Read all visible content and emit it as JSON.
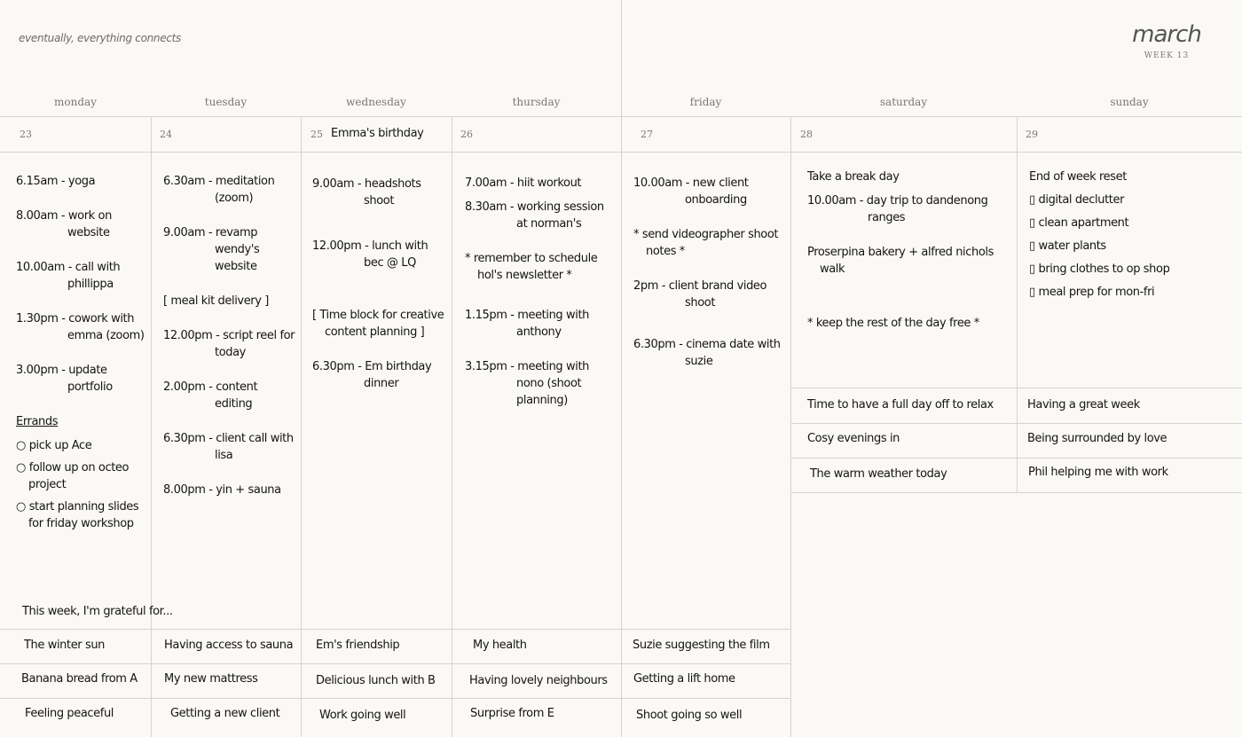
{
  "header": {
    "tagline": "eventually, everything connects",
    "month": "march",
    "week": "WEEK 13"
  },
  "days": [
    {
      "name": "monday",
      "date": "23"
    },
    {
      "name": "tuesday",
      "date": "24"
    },
    {
      "name": "wednesday",
      "date": "25",
      "note": "Emma's birthday"
    },
    {
      "name": "thursday",
      "date": "26"
    },
    {
      "name": "friday",
      "date": "27"
    },
    {
      "name": "saturday",
      "date": "28"
    },
    {
      "name": "sunday",
      "date": "29"
    }
  ],
  "monday": {
    "items": [
      "6.15am - yoga",
      "8.00am - work on website",
      "10.00am - call with phillippa",
      "1.30pm - cowork with emma (zoom)",
      "3.00pm - update portfolio"
    ],
    "errands_title": "Errands",
    "errands": [
      "pick up Ace",
      "follow up on octeo project",
      "start planning slides for friday workshop"
    ]
  },
  "tuesday": {
    "items": [
      "6.30am - meditation (zoom)",
      "9.00am - revamp wendy's website",
      "[ meal kit delivery ]",
      "12.00pm - script reel for today",
      "2.00pm - content editing",
      "6.30pm - client call with lisa",
      "8.00pm - yin + sauna"
    ]
  },
  "wednesday": {
    "items": [
      "9.00am - headshots shoot",
      "12.00pm - lunch with bec @ LQ",
      "[ Time block for creative content planning ]",
      "6.30pm - Em birthday dinner"
    ]
  },
  "thursday": {
    "items": [
      "7.00am - hiit workout",
      "8.30am - working session at norman's",
      "* remember to schedule hol's newsletter *",
      "1.15pm - meeting with anthony",
      "3.15pm - meeting with nono (shoot planning)"
    ]
  },
  "friday": {
    "items": [
      "10.00am - new client onboarding",
      "* send videographer shoot notes *",
      "2pm - client brand video shoot",
      "6.30pm - cinema date with suzie"
    ]
  },
  "saturday": {
    "items": [
      "Take a break day",
      "10.00am - day trip to dandenong ranges",
      "Proserpina bakery + alfred nichols walk",
      "* keep the rest of the day free *"
    ]
  },
  "sunday": {
    "title": "End of week reset",
    "checklist": [
      "digital declutter",
      "clean apartment",
      "water plants",
      "bring clothes to op shop",
      "meal prep for mon-fri"
    ]
  },
  "gratitude": {
    "title": "This week, I'm grateful for...",
    "rows": [
      [
        "The winter sun",
        "Having access to sauna",
        "Em's friendship",
        "My health",
        "Suzie suggesting the film",
        "Time to have a full day off to relax",
        "Having a great week"
      ],
      [
        "Banana bread from A",
        "My new mattress",
        "Delicious lunch with B",
        "Having lovely neighbours",
        "Getting a lift home",
        "Cosy evenings in",
        "Being surrounded by love"
      ],
      [
        "Feeling peaceful",
        "Getting a new client",
        "Work going well",
        "Surprise from E",
        "Shoot going so well",
        "The warm weather today",
        "Phil helping me with work"
      ]
    ]
  }
}
